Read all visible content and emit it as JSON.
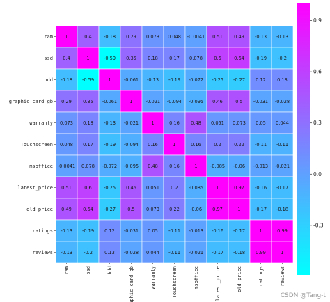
{
  "chart_data": {
    "type": "heatmap",
    "title": "",
    "xlabel": "",
    "ylabel": "",
    "labels": [
      "ram",
      "ssd",
      "hdd",
      "graphic_card_gb",
      "warranty",
      "Touchscreen",
      "msoffice",
      "latest_price",
      "old_price",
      "ratings",
      "reviews"
    ],
    "matrix": [
      [
        1,
        0.4,
        -0.18,
        0.29,
        0.073,
        0.048,
        -0.0041,
        0.51,
        0.49,
        -0.13,
        -0.13
      ],
      [
        0.4,
        1,
        -0.59,
        0.35,
        0.18,
        0.17,
        0.078,
        0.6,
        0.64,
        -0.19,
        -0.2
      ],
      [
        -0.18,
        -0.59,
        1,
        -0.061,
        -0.13,
        -0.19,
        -0.072,
        -0.25,
        -0.27,
        0.12,
        0.13
      ],
      [
        0.29,
        0.35,
        -0.061,
        1,
        -0.021,
        -0.094,
        -0.095,
        0.46,
        0.5,
        -0.031,
        -0.028
      ],
      [
        0.073,
        0.18,
        -0.13,
        -0.021,
        1,
        0.16,
        0.48,
        0.051,
        0.073,
        0.05,
        0.044
      ],
      [
        0.048,
        0.17,
        -0.19,
        -0.094,
        0.16,
        1,
        0.16,
        0.2,
        0.22,
        -0.11,
        -0.11
      ],
      [
        -0.0041,
        0.078,
        -0.072,
        -0.095,
        0.48,
        0.16,
        1,
        -0.085,
        -0.06,
        -0.013,
        -0.021
      ],
      [
        0.51,
        0.6,
        -0.25,
        0.46,
        0.051,
        0.2,
        -0.085,
        1,
        0.97,
        -0.16,
        -0.17
      ],
      [
        0.49,
        0.64,
        -0.27,
        0.5,
        0.073,
        0.22,
        -0.06,
        0.97,
        1,
        -0.17,
        -0.18
      ],
      [
        -0.13,
        -0.19,
        0.12,
        -0.031,
        0.05,
        -0.11,
        -0.013,
        -0.16,
        -0.17,
        1,
        0.99
      ],
      [
        -0.13,
        -0.2,
        0.13,
        -0.028,
        0.044,
        -0.11,
        -0.021,
        -0.17,
        -0.18,
        0.99,
        1
      ]
    ],
    "colormap": "cool",
    "color_low": "#00ffff",
    "color_high": "#ff00ff",
    "vmin": -0.59,
    "vmax": 1,
    "colorbar_ticks": [
      0.9,
      0.6,
      0.3,
      0.0,
      -0.3
    ],
    "colorbar_tick_labels": [
      "0.9",
      "0.6",
      "0.3",
      "0.0",
      "-0.3"
    ],
    "grid_lines": true
  },
  "watermark": "CSDN @Tang-t"
}
